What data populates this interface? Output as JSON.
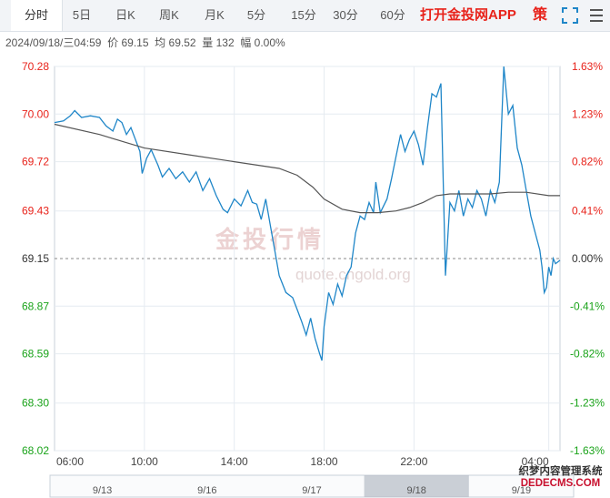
{
  "tabs": [
    {
      "label": "分时",
      "active": true
    },
    {
      "label": "5日",
      "active": false
    },
    {
      "label": "日K",
      "active": false
    },
    {
      "label": "周K",
      "active": false
    },
    {
      "label": "月K",
      "active": false
    },
    {
      "label": "5分",
      "active": false
    },
    {
      "label": "15分",
      "active": false
    },
    {
      "label": "30分",
      "active": false
    },
    {
      "label": "60分",
      "active": false
    }
  ],
  "promo_label": "打开金投网APP",
  "strategy_label": "策",
  "info_bar": {
    "datetime": "2024/09/18/三04:59",
    "price_label": "价",
    "price": "69.15",
    "avg_label": "均",
    "avg": "69.52",
    "volume_label": "量",
    "volume": "132",
    "change_label": "幅",
    "change": "0.00%"
  },
  "watermark": {
    "text": "金投行情",
    "url": "quote.cngold.org",
    "logo": "AU"
  },
  "corner_watermark": {
    "line1": "织梦内容管理系统",
    "line2": "DEDECMS.COM"
  },
  "colors": {
    "up": "#e8231b",
    "down": "#1aa31a",
    "price_line": "#1f86c8",
    "avg_line": "#555555",
    "baseline": "#888888"
  },
  "chart_data": {
    "type": "line",
    "yticks": [
      "70.28",
      "70.00",
      "69.72",
      "69.43",
      "69.15",
      "68.87",
      "68.59",
      "68.30",
      "68.02"
    ],
    "ytick_values": [
      70.28,
      70.0,
      69.72,
      69.43,
      69.15,
      68.87,
      68.59,
      68.3,
      68.02
    ],
    "pct_ticks": [
      "1.63%",
      "1.23%",
      "0.82%",
      "0.41%",
      "0.00%",
      "-0.41%",
      "-0.82%",
      "-1.23%",
      "-1.63%"
    ],
    "ylim": [
      68.02,
      70.28
    ],
    "base_price": 69.15,
    "xticks": [
      "06:00",
      "10:00",
      "14:00",
      "18:00",
      "22:00",
      "04:00"
    ],
    "xtick_hours": [
      0,
      4,
      8,
      12,
      16,
      22
    ],
    "x_hours_range": [
      0,
      22.5
    ],
    "series": [
      {
        "type": "price",
        "points": [
          [
            0,
            69.95
          ],
          [
            0.4,
            69.96
          ],
          [
            0.7,
            69.99
          ],
          [
            0.9,
            70.02
          ],
          [
            1.2,
            69.98
          ],
          [
            1.6,
            69.99
          ],
          [
            2.0,
            69.98
          ],
          [
            2.3,
            69.93
          ],
          [
            2.6,
            69.9
          ],
          [
            2.8,
            69.97
          ],
          [
            3.0,
            69.95
          ],
          [
            3.2,
            69.88
          ],
          [
            3.4,
            69.92
          ],
          [
            3.6,
            69.85
          ],
          [
            3.8,
            69.78
          ],
          [
            3.9,
            69.65
          ],
          [
            4.1,
            69.74
          ],
          [
            4.3,
            69.79
          ],
          [
            4.6,
            69.7
          ],
          [
            4.8,
            69.63
          ],
          [
            5.1,
            69.68
          ],
          [
            5.4,
            69.62
          ],
          [
            5.7,
            69.66
          ],
          [
            6.0,
            69.6
          ],
          [
            6.3,
            69.66
          ],
          [
            6.6,
            69.55
          ],
          [
            6.9,
            69.62
          ],
          [
            7.2,
            69.52
          ],
          [
            7.5,
            69.44
          ],
          [
            7.7,
            69.42
          ],
          [
            8.0,
            69.5
          ],
          [
            8.3,
            69.46
          ],
          [
            8.6,
            69.55
          ],
          [
            8.8,
            69.48
          ],
          [
            9.0,
            69.47
          ],
          [
            9.2,
            69.38
          ],
          [
            9.4,
            69.5
          ],
          [
            9.6,
            69.35
          ],
          [
            9.8,
            69.2
          ],
          [
            10.0,
            69.05
          ],
          [
            10.3,
            68.95
          ],
          [
            10.6,
            68.92
          ],
          [
            10.8,
            68.85
          ],
          [
            11.0,
            68.78
          ],
          [
            11.2,
            68.7
          ],
          [
            11.4,
            68.8
          ],
          [
            11.6,
            68.68
          ],
          [
            11.8,
            68.59
          ],
          [
            11.9,
            68.55
          ],
          [
            12.0,
            68.75
          ],
          [
            12.2,
            68.95
          ],
          [
            12.4,
            68.88
          ],
          [
            12.6,
            69.0
          ],
          [
            12.8,
            68.93
          ],
          [
            13.0,
            69.05
          ],
          [
            13.2,
            69.1
          ],
          [
            13.4,
            69.3
          ],
          [
            13.6,
            69.4
          ],
          [
            13.8,
            69.38
          ],
          [
            14.0,
            69.48
          ],
          [
            14.2,
            69.42
          ],
          [
            14.3,
            69.6
          ],
          [
            14.5,
            69.42
          ],
          [
            14.8,
            69.5
          ],
          [
            15.0,
            69.62
          ],
          [
            15.2,
            69.75
          ],
          [
            15.4,
            69.88
          ],
          [
            15.6,
            69.78
          ],
          [
            15.8,
            69.85
          ],
          [
            16.0,
            69.9
          ],
          [
            16.2,
            69.82
          ],
          [
            16.4,
            69.7
          ],
          [
            16.6,
            69.92
          ],
          [
            16.8,
            70.12
          ],
          [
            17.0,
            70.1
          ],
          [
            17.2,
            70.18
          ],
          [
            17.4,
            69.05
          ],
          [
            17.6,
            69.48
          ],
          [
            17.8,
            69.43
          ],
          [
            18.0,
            69.55
          ],
          [
            18.2,
            69.4
          ],
          [
            18.4,
            69.5
          ],
          [
            18.6,
            69.45
          ],
          [
            18.8,
            69.55
          ],
          [
            19.0,
            69.5
          ],
          [
            19.2,
            69.4
          ],
          [
            19.4,
            69.55
          ],
          [
            19.6,
            69.48
          ],
          [
            19.8,
            69.6
          ],
          [
            20.0,
            70.28
          ],
          [
            20.2,
            70.0
          ],
          [
            20.4,
            70.05
          ],
          [
            20.6,
            69.8
          ],
          [
            20.8,
            69.7
          ],
          [
            21.0,
            69.55
          ],
          [
            21.2,
            69.4
          ],
          [
            21.4,
            69.3
          ],
          [
            21.6,
            69.2
          ],
          [
            21.7,
            69.1
          ],
          [
            21.8,
            68.95
          ],
          [
            21.9,
            68.98
          ],
          [
            22.0,
            69.1
          ],
          [
            22.1,
            69.05
          ],
          [
            22.2,
            69.15
          ],
          [
            22.3,
            69.12
          ],
          [
            22.5,
            69.14
          ]
        ]
      },
      {
        "type": "average",
        "points": [
          [
            0,
            69.94
          ],
          [
            2.0,
            69.88
          ],
          [
            3.0,
            69.84
          ],
          [
            4.0,
            69.8
          ],
          [
            6.0,
            69.76
          ],
          [
            8.0,
            69.72
          ],
          [
            10.0,
            69.68
          ],
          [
            10.8,
            69.64
          ],
          [
            11.5,
            69.57
          ],
          [
            12.0,
            69.5
          ],
          [
            12.8,
            69.44
          ],
          [
            13.6,
            69.42
          ],
          [
            14.4,
            69.42
          ],
          [
            15.2,
            69.43
          ],
          [
            15.8,
            69.45
          ],
          [
            16.4,
            69.48
          ],
          [
            17.0,
            69.52
          ],
          [
            17.6,
            69.53
          ],
          [
            18.4,
            69.53
          ],
          [
            19.4,
            69.53
          ],
          [
            20.2,
            69.54
          ],
          [
            21.0,
            69.54
          ],
          [
            22.0,
            69.52
          ],
          [
            22.5,
            69.52
          ]
        ]
      }
    ]
  },
  "navigator": {
    "dates": [
      "9/13",
      "9/16",
      "9/17",
      "9/18",
      "9/19"
    ]
  }
}
